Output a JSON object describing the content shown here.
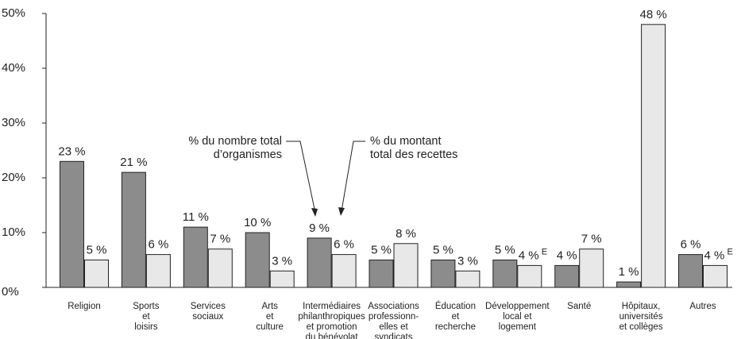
{
  "chart_data": {
    "type": "bar",
    "categories": [
      [
        "Religion"
      ],
      [
        "Sports",
        "et",
        "loisirs"
      ],
      [
        "Services",
        "sociaux"
      ],
      [
        "Arts",
        "et",
        "culture"
      ],
      [
        "Intermédiaires",
        "philanthropiques",
        "et promotion",
        "du bénévolat"
      ],
      [
        "Associations",
        "professionn-",
        "elles et",
        "syndicats"
      ],
      [
        "Éducation",
        "et",
        "recherche"
      ],
      [
        "Développement",
        "local et",
        "logement"
      ],
      [
        "Santé"
      ],
      [
        "Hôpitaux,",
        "universités",
        "et collèges"
      ],
      [
        "Autres"
      ]
    ],
    "series": [
      {
        "color": "#8c8c8c",
        "values": [
          23,
          21,
          11,
          10,
          9,
          5,
          5,
          5,
          4,
          1,
          6
        ],
        "value_labels": [
          "23 %",
          "21 %",
          "11 %",
          "10 %",
          "9 %",
          "5 %",
          "5 %",
          "5 %",
          "4 %",
          "1 %",
          "6 %"
        ]
      },
      {
        "color": "#e8e8e8",
        "values": [
          5,
          6,
          7,
          3,
          6,
          8,
          3,
          4,
          7,
          48,
          4
        ],
        "value_labels": [
          "5 %",
          "6 %",
          "7 %",
          "3 %",
          "6 %",
          "8 %",
          "3 %",
          "4 %",
          "7 %",
          "48 %",
          "4 %"
        ],
        "value_notes": [
          null,
          null,
          null,
          null,
          null,
          null,
          null,
          "E",
          null,
          null,
          "E"
        ]
      }
    ],
    "annotations": [
      [
        "% du nombre total",
        "d’organismes"
      ],
      [
        "% du montant",
        "total des recettes"
      ]
    ],
    "ylim": [
      0,
      50
    ],
    "yticks": [
      {
        "value": 0,
        "label": "0%"
      },
      {
        "value": 10,
        "label": "10%"
      },
      {
        "value": 20,
        "label": "20%"
      },
      {
        "value": 30,
        "label": "30%"
      },
      {
        "value": 40,
        "label": "40%"
      },
      {
        "value": 50,
        "label": "50%"
      }
    ]
  }
}
